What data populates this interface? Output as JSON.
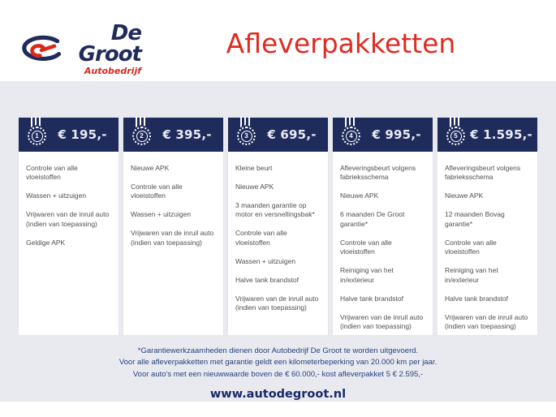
{
  "header": {
    "logo": {
      "brand": "De Groot",
      "sub": "Autobedrijf"
    },
    "title": "Afleverpakketten"
  },
  "icons": {
    "logo_mark": "swirl-arrow-logo-icon",
    "package_badge": "medal-icon"
  },
  "colors": {
    "navy_header": "#1f2b5b",
    "title_red": "#df2b21",
    "logo_red": "#d9291c",
    "band_gray": "#e9eaef",
    "item_text": "#4f4f4f",
    "footer_navy": "#25417e"
  },
  "packages": [
    {
      "number": "1",
      "price": "€ 195,-",
      "items": [
        "Controle van alle vloeistoffen",
        "Wassen + uitzuigen",
        "Vrijwaren van de inruil auto (indien van toepassing)",
        "Geldige APK"
      ]
    },
    {
      "number": "2",
      "price": "€ 395,-",
      "items": [
        "Nieuwe APK",
        "Controle van alle vloeistoffen",
        "Wassen + uitzuigen",
        "Vrijwaren van de inruil auto (indien van toepassing)"
      ]
    },
    {
      "number": "3",
      "price": "€ 695,-",
      "items": [
        "Kleine beurt",
        "Nieuwe APK",
        "3 maanden garantie op motor en versnellingsbak*",
        "Controle van alle vloeistoffen",
        "Wassen + uitzuigen",
        "Halve tank brandstof",
        "Vrijwaren van de inruil auto (indien van toepassing)"
      ]
    },
    {
      "number": "4",
      "price": "€ 995,-",
      "items": [
        "Afleveringsbeurt volgens fabrieksschema",
        "Nieuwe APK",
        "6 maanden De Groot garantie*",
        "Controle van alle vloeistoffen",
        "Reiniging van het in/exterieur",
        "Halve tank brandstof",
        "Vrijwaren van de inruil auto (indien van toepassing)"
      ]
    },
    {
      "number": "5",
      "price": "€ 1.595,-",
      "items": [
        "Afleveringsbeurt volgens fabrieksschema",
        "Nieuwe APK",
        "12 maanden Bovag garantie*",
        "Controle van alle vloeistoffen",
        "Reiniging van het in/exterieur",
        "Halve tank brandstof",
        "Vrijwaren van de inruil auto (indien van toepassing)"
      ]
    }
  ],
  "footer": {
    "notes": [
      "*Garantiewerkzaamheden dienen door Autobedrijf De Groot te worden uitgevoerd.",
      "Voor alle afleverpakketten met garantie geldt een kilometerbeperking van 20.000 km per jaar.",
      "Voor auto's met een nieuwwaarde boven de € 60.000,- kost afleverpakket 5 € 2.595,-"
    ],
    "website": "www.autodegroot.nl"
  }
}
